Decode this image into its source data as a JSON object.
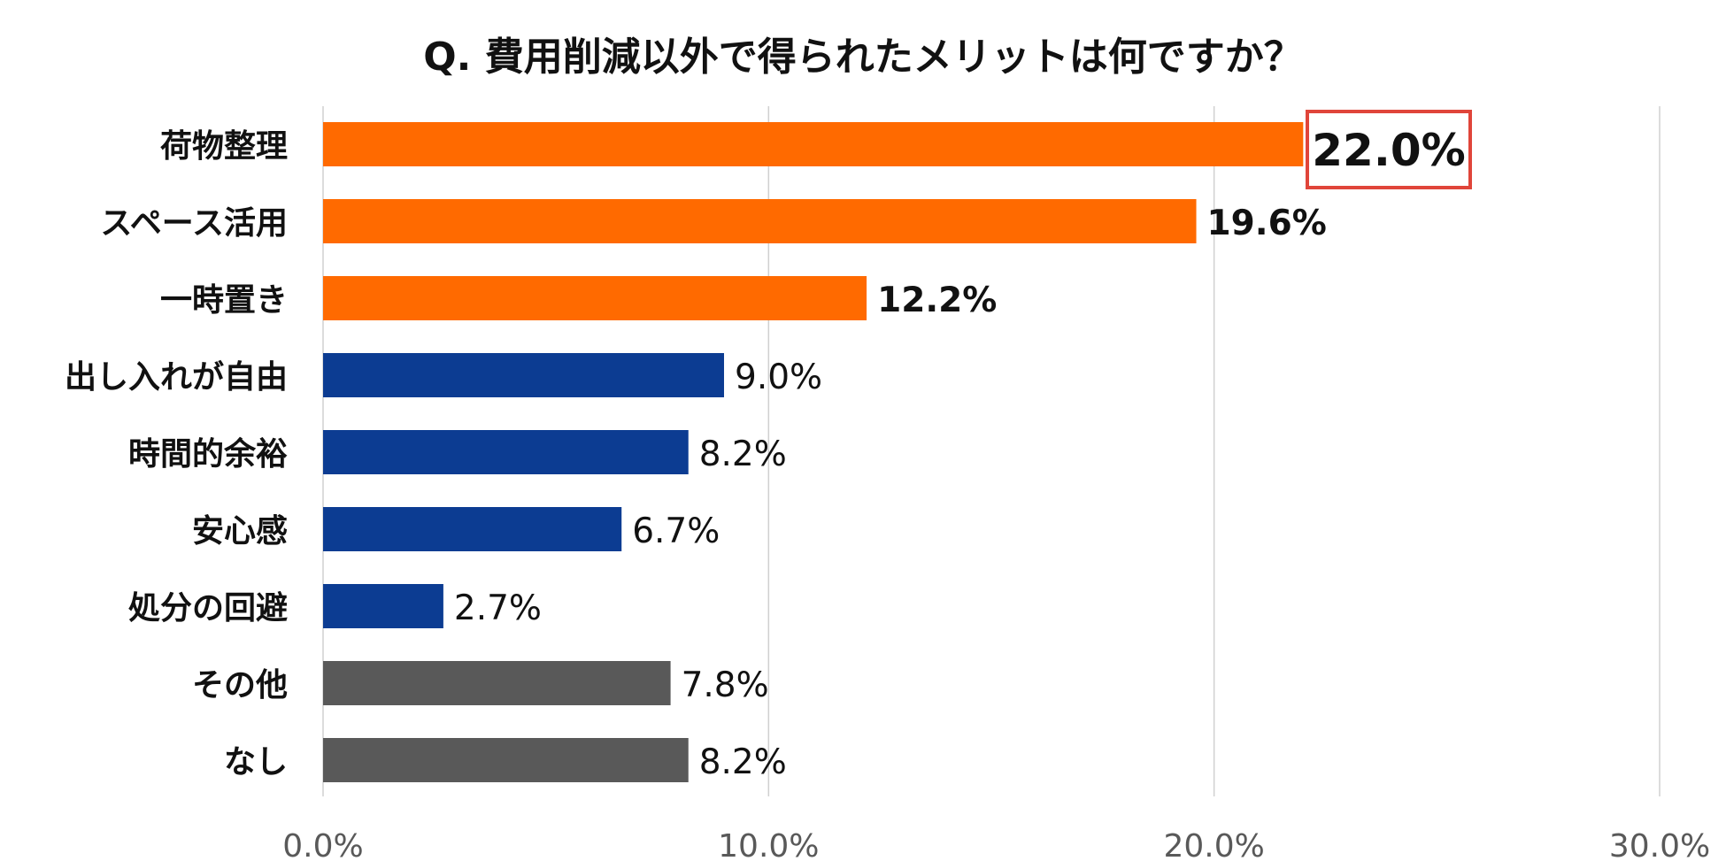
{
  "chart_data": {
    "type": "bar",
    "orientation": "horizontal",
    "title": "Q. 費用削減以外で得られたメリットは何ですか？",
    "xlabel": "",
    "ylabel": "",
    "xlim": [
      0,
      30
    ],
    "grid": true,
    "x_ticks": [
      0,
      10,
      20,
      30
    ],
    "x_tick_labels": [
      "0.0%",
      "10.0%",
      "20.0%",
      "30.0%"
    ],
    "categories": [
      "荷物整理",
      "スペース活用",
      "一時置き",
      "出し入れが自由",
      "時間的余裕",
      "安心感",
      "処分の回避",
      "その他",
      "なし"
    ],
    "values": [
      22.0,
      19.6,
      12.2,
      9.0,
      8.2,
      6.7,
      2.7,
      7.8,
      8.2
    ],
    "value_labels": [
      "22.0%",
      "19.6%",
      "12.2%",
      "9.0%",
      "8.2%",
      "6.7%",
      "2.7%",
      "7.8%",
      "8.2%"
    ],
    "bar_colors": [
      "#FF6A00",
      "#FF6A00",
      "#FF6A00",
      "#0C3C92",
      "#0C3C92",
      "#0C3C92",
      "#0C3C92",
      "#595959",
      "#595959"
    ],
    "label_emphasis": [
      "boxed",
      "bold",
      "bold",
      "normal",
      "normal",
      "normal",
      "normal",
      "normal",
      "normal"
    ],
    "highlight_box_color": "#E0453A",
    "grid_color": "#D0D0D0",
    "tick_label_color": "#595959",
    "category_label_color": "#111111"
  }
}
